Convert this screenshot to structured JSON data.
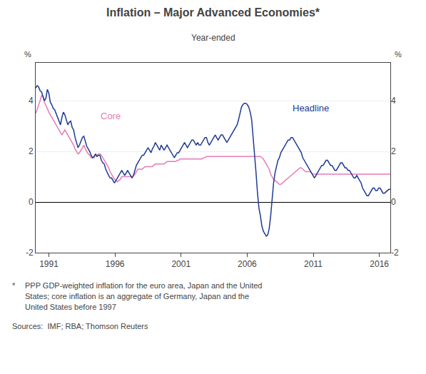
{
  "chart_data": {
    "type": "line",
    "title": "Inflation – Major Advanced Economies*",
    "subtitle": "Year-ended",
    "ylabel": "%",
    "y2label": "%",
    "footnote": {
      "marker": "*",
      "lines": [
        "PPP GDP-weighted inflation for the euro area, Japan and the United",
        "States; core inflation is an aggregate of Germany, Japan and the",
        "United States before 1997"
      ]
    },
    "sources": "Sources:  IMF; RBA; Thomson Reuters",
    "xlim": [
      1990.0,
      2016.83
    ],
    "xticks": [
      1991,
      1996,
      2001,
      2006,
      2011,
      2016
    ],
    "ylim": [
      -2,
      5.5
    ],
    "yticks": [
      -2,
      0,
      2,
      4
    ],
    "y2lim": [
      -2,
      5.5
    ],
    "y2ticks": [
      -2,
      0,
      2,
      4
    ],
    "grid": true,
    "x": [
      1990,
      1990.1104,
      1990.2208,
      1990.3312,
      1990.4416,
      1990.5521,
      1990.6625,
      1990.7729,
      1990.8833,
      1990.9937,
      1991.1041,
      1991.2145,
      1991.3249,
      1991.4353,
      1991.5458,
      1991.6562,
      1991.7666,
      1991.877,
      1991.9874,
      1992.0978,
      1992.2082,
      1992.3186,
      1992.4291,
      1992.5395,
      1992.6499,
      1992.7603,
      1992.8707,
      1992.9811,
      1993.0915,
      1993.2019,
      1993.3123,
      1993.4228,
      1993.5332,
      1993.6436,
      1993.754,
      1993.8644,
      1993.9748,
      1994.0852,
      1994.1956,
      1994.306,
      1994.4165,
      1994.5269,
      1994.6373,
      1994.7477,
      1994.8581,
      1994.9685,
      1995.0789,
      1995.1893,
      1995.2998,
      1995.4102,
      1995.5206,
      1995.631,
      1995.7414,
      1995.8518,
      1995.9622,
      1996.0726,
      1996.183,
      1996.2935,
      1996.4039,
      1996.5143,
      1996.6247,
      1996.7351,
      1996.8455,
      1996.9559,
      1997.0663,
      1997.1767,
      1997.2872,
      1997.3976,
      1997.508,
      1997.6184,
      1997.7288,
      1997.8392,
      1997.9496,
      1998.06,
      1998.1705,
      1998.2809,
      1998.3913,
      1998.5017,
      1998.6121,
      1998.7225,
      1998.8329,
      1998.9433,
      1999.0537,
      1999.1642,
      1999.2746,
      1999.385,
      1999.4954,
      1999.6058,
      1999.7162,
      1999.8266,
      1999.937,
      2000.0474,
      2000.1579,
      2000.2683,
      2000.3787,
      2000.4891,
      2000.5995,
      2000.7099,
      2000.8203,
      2000.9307,
      2001.0412,
      2001.1516,
      2001.262,
      2001.3724,
      2001.4828,
      2001.5932,
      2001.7036,
      2001.814,
      2001.9244,
      2002.0349,
      2002.1453,
      2002.2557,
      2002.3661,
      2002.4765,
      2002.5869,
      2002.6973,
      2002.8077,
      2002.9181,
      2003.0286,
      2003.139,
      2003.2494,
      2003.3598,
      2003.4702,
      2003.5806,
      2003.691,
      2003.8014,
      2003.9119,
      2004.0223,
      2004.1327,
      2004.2431,
      2004.3535,
      2004.4639,
      2004.5743,
      2004.6847,
      2004.7951,
      2004.9056,
      2005.016,
      2005.1264,
      2005.2368,
      2005.3472,
      2005.4576,
      2005.568,
      2005.6784,
      2005.7888,
      2005.8993,
      2006.0097,
      2006.1201,
      2006.2305,
      2006.3409,
      2006.4513,
      2006.5617,
      2006.6721,
      2006.7826,
      2006.893,
      2007.0034,
      2007.1138,
      2007.2242,
      2007.3346,
      2007.445,
      2007.5554,
      2007.6658,
      2007.7763,
      2007.8867,
      2007.9971,
      2008.1075,
      2008.2179,
      2008.3283,
      2008.4387,
      2008.5491,
      2008.6595,
      2008.77,
      2008.8804,
      2008.9908,
      2009.1012,
      2009.2116,
      2009.322,
      2009.4324,
      2009.5428,
      2009.6533,
      2009.7637,
      2009.8741,
      2009.9845,
      2010.0949,
      2010.2053,
      2010.3157,
      2010.4261,
      2010.5365,
      2010.647,
      2010.7574,
      2010.8678,
      2010.9782,
      2011.0886,
      2011.199,
      2011.3094,
      2011.4198,
      2011.5302,
      2011.6407,
      2011.7511,
      2011.8615,
      2011.9719,
      2012.0823,
      2012.1927,
      2012.3031,
      2012.4135,
      2012.524,
      2012.6344,
      2012.7448,
      2012.8552,
      2012.9656,
      2013.076,
      2013.1864,
      2013.2968,
      2013.4072,
      2013.5177,
      2013.6281,
      2013.7385,
      2013.8489,
      2013.9593,
      2014.0697,
      2014.1801,
      2014.2905,
      2014.4009,
      2014.5114,
      2014.6218,
      2014.7322,
      2014.8426,
      2014.953,
      2015.0634,
      2015.1738,
      2015.2842,
      2015.3947,
      2015.5051,
      2015.6155,
      2015.7259,
      2015.8363,
      2015.9467,
      2016.0571,
      2016.1675,
      2016.2779,
      2016.3884,
      2016.4988,
      2016.6092,
      2016.7196,
      2016.83
    ],
    "series": [
      {
        "name": "Core",
        "color": "#e87bb5",
        "values": [
          3.5,
          3.65,
          3.8,
          4.0,
          4.2,
          4.15,
          3.95,
          3.8,
          3.65,
          3.55,
          3.45,
          3.35,
          3.25,
          3.15,
          3.05,
          2.95,
          2.85,
          2.75,
          2.65,
          2.75,
          2.85,
          2.75,
          2.65,
          2.55,
          2.45,
          2.35,
          2.25,
          2.1,
          2.0,
          1.9,
          1.95,
          2.05,
          2.15,
          2.25,
          2.1,
          2.0,
          1.9,
          1.85,
          1.75,
          1.75,
          1.75,
          1.85,
          1.85,
          1.9,
          1.9,
          1.85,
          1.75,
          1.65,
          1.55,
          1.45,
          1.35,
          1.2,
          1.1,
          1.0,
          0.9,
          0.85,
          0.8,
          0.85,
          0.9,
          1.0,
          1.0,
          1.0,
          1.0,
          1.0,
          1.0,
          1.0,
          1.0,
          1.05,
          1.1,
          1.2,
          1.3,
          1.3,
          1.3,
          1.3,
          1.35,
          1.4,
          1.4,
          1.4,
          1.4,
          1.4,
          1.4,
          1.45,
          1.5,
          1.5,
          1.5,
          1.5,
          1.5,
          1.5,
          1.5,
          1.55,
          1.6,
          1.6,
          1.6,
          1.6,
          1.6,
          1.6,
          1.6,
          1.65,
          1.65,
          1.7,
          1.7,
          1.7,
          1.7,
          1.7,
          1.7,
          1.7,
          1.7,
          1.7,
          1.7,
          1.7,
          1.7,
          1.7,
          1.7,
          1.7,
          1.7,
          1.75,
          1.75,
          1.8,
          1.8,
          1.8,
          1.8,
          1.8,
          1.8,
          1.8,
          1.8,
          1.8,
          1.8,
          1.8,
          1.8,
          1.8,
          1.8,
          1.8,
          1.8,
          1.8,
          1.8,
          1.8,
          1.8,
          1.8,
          1.8,
          1.8,
          1.8,
          1.8,
          1.8,
          1.8,
          1.8,
          1.8,
          1.8,
          1.8,
          1.8,
          1.8,
          1.8,
          1.8,
          1.8,
          1.8,
          1.8,
          1.75,
          1.7,
          1.6,
          1.5,
          1.4,
          1.3,
          1.1,
          1.0,
          0.9,
          0.85,
          0.8,
          0.75,
          0.7,
          0.7,
          0.75,
          0.8,
          0.85,
          0.9,
          0.95,
          1.0,
          1.05,
          1.1,
          1.15,
          1.2,
          1.25,
          1.3,
          1.35,
          1.35,
          1.3,
          1.25,
          1.2,
          1.2,
          1.2,
          1.2,
          1.15,
          1.1,
          1.1,
          1.1,
          1.1,
          1.1,
          1.1,
          1.1,
          1.1,
          1.1,
          1.1,
          1.1,
          1.1,
          1.1,
          1.1,
          1.1,
          1.1,
          1.1,
          1.1,
          1.1,
          1.1,
          1.1,
          1.1,
          1.1,
          1.1,
          1.1,
          1.1,
          1.1,
          1.1,
          1.1,
          1.1,
          1.1,
          1.1,
          1.1,
          1.1,
          1.1,
          1.1,
          1.1,
          1.1,
          1.1,
          1.1,
          1.1,
          1.1,
          1.1,
          1.1,
          1.1,
          1.1,
          1.1,
          1.1,
          1.1,
          1.1,
          1.1,
          1.1,
          1.1,
          1.1
        ]
      },
      {
        "name": "Headline",
        "color": "#1f3a93",
        "values": [
          4.5,
          4.6,
          4.55,
          4.4,
          4.35,
          4.2,
          4.0,
          4.1,
          4.45,
          4.3,
          3.95,
          3.85,
          3.7,
          3.65,
          3.5,
          3.3,
          3.15,
          3.05,
          3.35,
          3.55,
          3.45,
          3.25,
          3.05,
          3.15,
          3.2,
          2.95,
          2.85,
          2.55,
          2.35,
          2.15,
          2.25,
          2.4,
          2.55,
          2.6,
          2.4,
          2.2,
          2.1,
          2.0,
          1.85,
          1.75,
          1.8,
          1.9,
          1.8,
          1.85,
          1.85,
          1.65,
          1.55,
          1.5,
          1.3,
          1.15,
          1.05,
          0.95,
          0.95,
          0.85,
          0.75,
          0.85,
          0.95,
          1.05,
          1.15,
          1.25,
          1.15,
          1.05,
          1.15,
          1.25,
          1.15,
          1.05,
          0.95,
          1.05,
          1.25,
          1.45,
          1.55,
          1.65,
          1.75,
          1.85,
          1.85,
          1.95,
          2.05,
          2.15,
          2.05,
          1.95,
          2.1,
          2.2,
          2.35,
          2.25,
          2.15,
          2.05,
          2.25,
          2.15,
          2.05,
          2.15,
          2.25,
          2.15,
          2.05,
          1.95,
          1.85,
          1.75,
          1.85,
          1.95,
          1.95,
          2.05,
          2.15,
          2.25,
          2.35,
          2.25,
          2.15,
          2.25,
          2.35,
          2.45,
          2.45,
          2.35,
          2.25,
          2.35,
          2.25,
          2.25,
          2.35,
          2.45,
          2.55,
          2.55,
          2.35,
          2.25,
          2.35,
          2.45,
          2.55,
          2.65,
          2.55,
          2.45,
          2.55,
          2.65,
          2.65,
          2.55,
          2.45,
          2.35,
          2.45,
          2.55,
          2.65,
          2.75,
          2.85,
          2.95,
          3.05,
          3.25,
          3.55,
          3.75,
          3.85,
          3.9,
          3.9,
          3.85,
          3.75,
          3.55,
          3.25,
          2.6,
          1.85,
          1.15,
          0.35,
          -0.25,
          -0.55,
          -0.95,
          -1.15,
          -1.25,
          -1.35,
          -1.3,
          -1.05,
          -0.55,
          0.15,
          0.75,
          1.15,
          1.45,
          1.65,
          1.75,
          1.95,
          2.05,
          2.15,
          2.25,
          2.35,
          2.45,
          2.45,
          2.55,
          2.55,
          2.45,
          2.35,
          2.25,
          2.15,
          2.05,
          1.95,
          1.75,
          1.65,
          1.55,
          1.45,
          1.35,
          1.25,
          1.15,
          1.05,
          0.95,
          1.05,
          1.15,
          1.25,
          1.35,
          1.45,
          1.45,
          1.55,
          1.65,
          1.65,
          1.55,
          1.45,
          1.45,
          1.35,
          1.25,
          1.25,
          1.35,
          1.45,
          1.55,
          1.55,
          1.45,
          1.35,
          1.35,
          1.25,
          1.25,
          1.15,
          1.05,
          0.95,
          0.95,
          1.05,
          0.95,
          0.85,
          0.75,
          0.55,
          0.45,
          0.35,
          0.25,
          0.25,
          0.35,
          0.45,
          0.55,
          0.55,
          0.45,
          0.45,
          0.55,
          0.55,
          0.45,
          0.35,
          0.35,
          0.4,
          0.45,
          0.5,
          0.5
        ]
      }
    ]
  }
}
